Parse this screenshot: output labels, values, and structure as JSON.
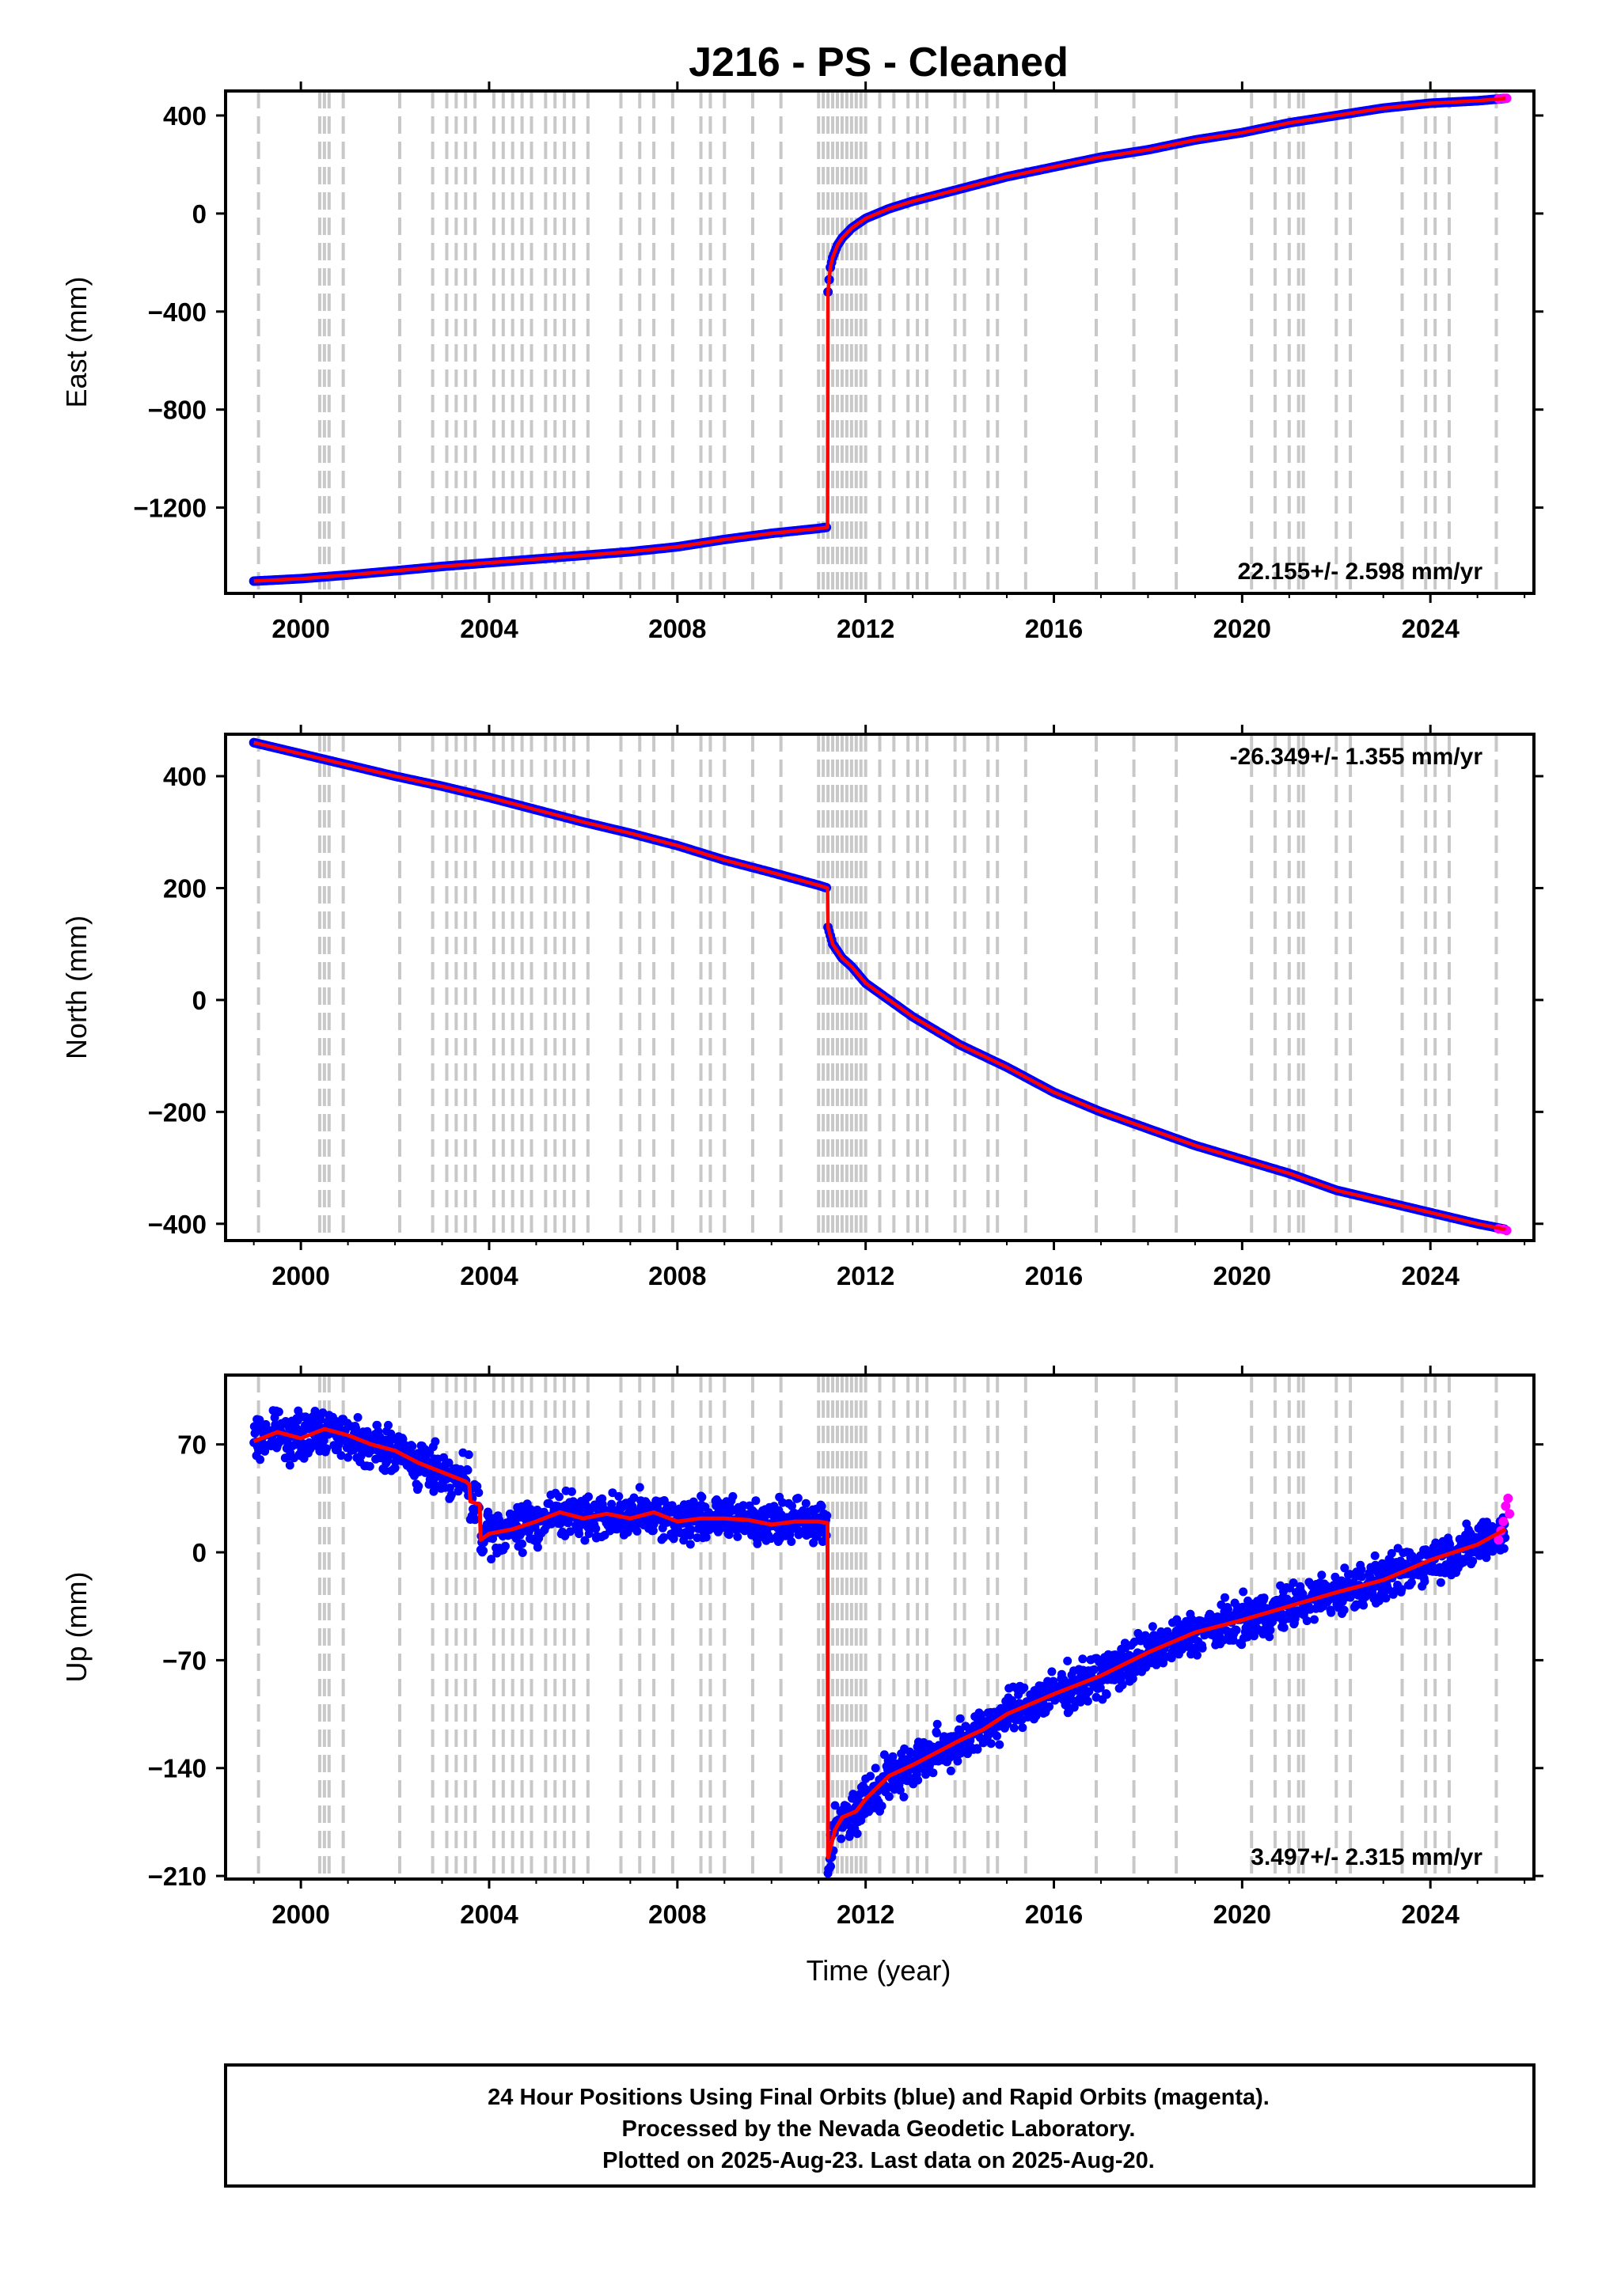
{
  "title": "J216  - PS - Cleaned",
  "xlabel": "Time (year)",
  "footer": [
    "24 Hour Positions Using Final Orbits (blue) and Rapid Orbits (magenta).",
    "Processed by the Nevada Geodetic Laboratory.",
    "Plotted on 2025-Aug-23. Last data on 2025-Aug-20."
  ],
  "colors": {
    "final_orbits": "#0000ff",
    "rapid_orbits": "#ff00ff",
    "model": "#ff0000",
    "event_lines": "#c8c8c8"
  },
  "event_years": [
    1999.1,
    2000.4,
    2000.5,
    2000.6,
    2000.9,
    2002.1,
    2002.8,
    2003.1,
    2003.3,
    2003.5,
    2003.7,
    2004.1,
    2004.3,
    2004.5,
    2004.7,
    2004.9,
    2005.2,
    2005.4,
    2005.6,
    2005.8,
    2006.1,
    2006.8,
    2007.2,
    2007.5,
    2007.9,
    2008.5,
    2008.7,
    2009.0,
    2009.6,
    2010.2,
    2011.0,
    2011.1,
    2011.2,
    2011.3,
    2011.4,
    2011.5,
    2011.6,
    2011.7,
    2011.8,
    2011.9,
    2012.0,
    2012.3,
    2012.6,
    2012.9,
    2013.1,
    2013.3,
    2013.9,
    2014.1,
    2014.6,
    2014.8,
    2015.4,
    2016.9,
    2017.7,
    2018.6,
    2020.2,
    2020.7,
    2021.0,
    2021.2,
    2021.3,
    2022.0,
    2022.3,
    2023.4,
    2023.9,
    2024.1,
    2024.4,
    2025.4
  ],
  "chart_data": [
    {
      "type": "scatter",
      "component": "east",
      "ylabel": "East (mm)",
      "xlim": [
        1998.4,
        2026.2
      ],
      "ylim": [
        -1550,
        500
      ],
      "xticks": [
        2000,
        2004,
        2008,
        2012,
        2016,
        2020,
        2024
      ],
      "yticks": [
        400,
        0,
        -400,
        -800,
        -1200
      ],
      "rate_label": "22.155+/- 2.598 mm/yr",
      "rate_position": "bottom-right",
      "series": [
        {
          "x": [
            1999.0,
            2000.0,
            2001.0,
            2002.0,
            2003.0,
            2004.0,
            2005.0,
            2006.0,
            2007.0,
            2008.0,
            2009.0,
            2010.0,
            2011.0,
            2011.19
          ],
          "y": [
            -1500,
            -1490,
            -1475,
            -1458,
            -1440,
            -1425,
            -1410,
            -1395,
            -1380,
            -1360,
            -1330,
            -1305,
            -1285,
            -1280
          ]
        },
        {
          "x": [
            2011.2,
            2011.25,
            2011.3,
            2011.4,
            2011.5,
            2011.7,
            2012.0,
            2012.5,
            2013.0,
            2014.0,
            2015.0,
            2016.0,
            2017.0,
            2018.0,
            2019.0,
            2020.0,
            2021.0,
            2022.0,
            2023.0,
            2024.0,
            2025.0,
            2025.6
          ],
          "y": [
            -320,
            -220,
            -180,
            -130,
            -100,
            -60,
            -20,
            20,
            50,
            100,
            150,
            190,
            230,
            260,
            300,
            330,
            370,
            400,
            430,
            450,
            460,
            470
          ]
        }
      ],
      "rapid": {
        "x": [
          2025.45,
          2025.55,
          2025.62
        ],
        "y": [
          468,
          470,
          470
        ]
      }
    },
    {
      "type": "scatter",
      "component": "north",
      "ylabel": "North (mm)",
      "xlim": [
        1998.4,
        2026.2
      ],
      "ylim": [
        -430,
        475
      ],
      "xticks": [
        2000,
        2004,
        2008,
        2012,
        2016,
        2020,
        2024
      ],
      "yticks": [
        400,
        200,
        0,
        -200,
        -400
      ],
      "rate_label": "-26.349+/- 1.355 mm/yr",
      "rate_position": "top-right",
      "series": [
        {
          "x": [
            1999.0,
            2000.0,
            2001.0,
            2002.0,
            2003.0,
            2004.0,
            2005.0,
            2006.0,
            2007.0,
            2008.0,
            2009.0,
            2010.0,
            2011.0,
            2011.19
          ],
          "y": [
            460,
            440,
            420,
            400,
            382,
            362,
            340,
            318,
            298,
            276,
            250,
            228,
            205,
            200
          ]
        },
        {
          "x": [
            2011.2,
            2011.3,
            2011.5,
            2011.7,
            2012.0,
            2012.5,
            2013.0,
            2014.0,
            2015.0,
            2016.0,
            2017.0,
            2018.0,
            2019.0,
            2020.0,
            2021.0,
            2022.0,
            2023.0,
            2024.0,
            2025.0,
            2025.6
          ],
          "y": [
            130,
            100,
            75,
            60,
            30,
            0,
            -30,
            -80,
            -120,
            -165,
            -200,
            -230,
            -260,
            -285,
            -310,
            -340,
            -360,
            -380,
            -400,
            -410
          ]
        }
      ],
      "rapid": {
        "x": [
          2025.45,
          2025.55,
          2025.62
        ],
        "y": [
          -409,
          -410,
          -412
        ]
      }
    },
    {
      "type": "scatter",
      "component": "up",
      "ylabel": "Up (mm)",
      "xlim": [
        1998.4,
        2026.2
      ],
      "ylim": [
        -212,
        115
      ],
      "xticks": [
        2000,
        2004,
        2008,
        2012,
        2016,
        2020,
        2024
      ],
      "yticks": [
        70,
        0,
        -70,
        -140,
        -210
      ],
      "rate_label": "3.497+/- 2.315 mm/yr",
      "rate_position": "bottom-right",
      "noise": 12,
      "series": [
        {
          "x": [
            1999.0,
            1999.5,
            2000.0,
            2000.5,
            2001.0,
            2001.5,
            2002.0,
            2002.5,
            2003.0,
            2003.5,
            2003.58
          ],
          "y": [
            72,
            78,
            74,
            80,
            76,
            70,
            66,
            58,
            52,
            46,
            44
          ]
        },
        {
          "x": [
            2003.6,
            2003.7,
            2003.8
          ],
          "y": [
            33,
            32,
            31
          ]
        },
        {
          "x": [
            2003.82,
            2004.0,
            2004.5,
            2005.0,
            2005.5,
            2006.0,
            2006.5,
            2007.0,
            2007.5,
            2008.0,
            2008.5,
            2009.0,
            2009.5,
            2010.0,
            2010.5,
            2011.0,
            2011.19
          ],
          "y": [
            8,
            12,
            15,
            20,
            26,
            22,
            25,
            22,
            26,
            20,
            22,
            22,
            21,
            18,
            20,
            20,
            19
          ]
        },
        {
          "x": [
            2011.2,
            2011.35,
            2011.5,
            2011.8,
            2012.0,
            2012.5,
            2013.0,
            2013.5,
            2014.0,
            2014.5,
            2015.0,
            2016.0,
            2017.0,
            2018.0,
            2019.0,
            2020.0,
            2021.0,
            2022.0,
            2023.0,
            2024.0,
            2025.0,
            2025.6
          ],
          "y": [
            -198,
            -180,
            -172,
            -168,
            -160,
            -145,
            -138,
            -130,
            -122,
            -115,
            -105,
            -92,
            -80,
            -65,
            -52,
            -44,
            -35,
            -26,
            -18,
            -5,
            5,
            15
          ]
        }
      ],
      "rapid": {
        "x": [
          2025.45,
          2025.5,
          2025.55,
          2025.6,
          2025.65,
          2025.68
        ],
        "y": [
          8,
          14,
          20,
          30,
          35,
          25
        ]
      }
    }
  ]
}
